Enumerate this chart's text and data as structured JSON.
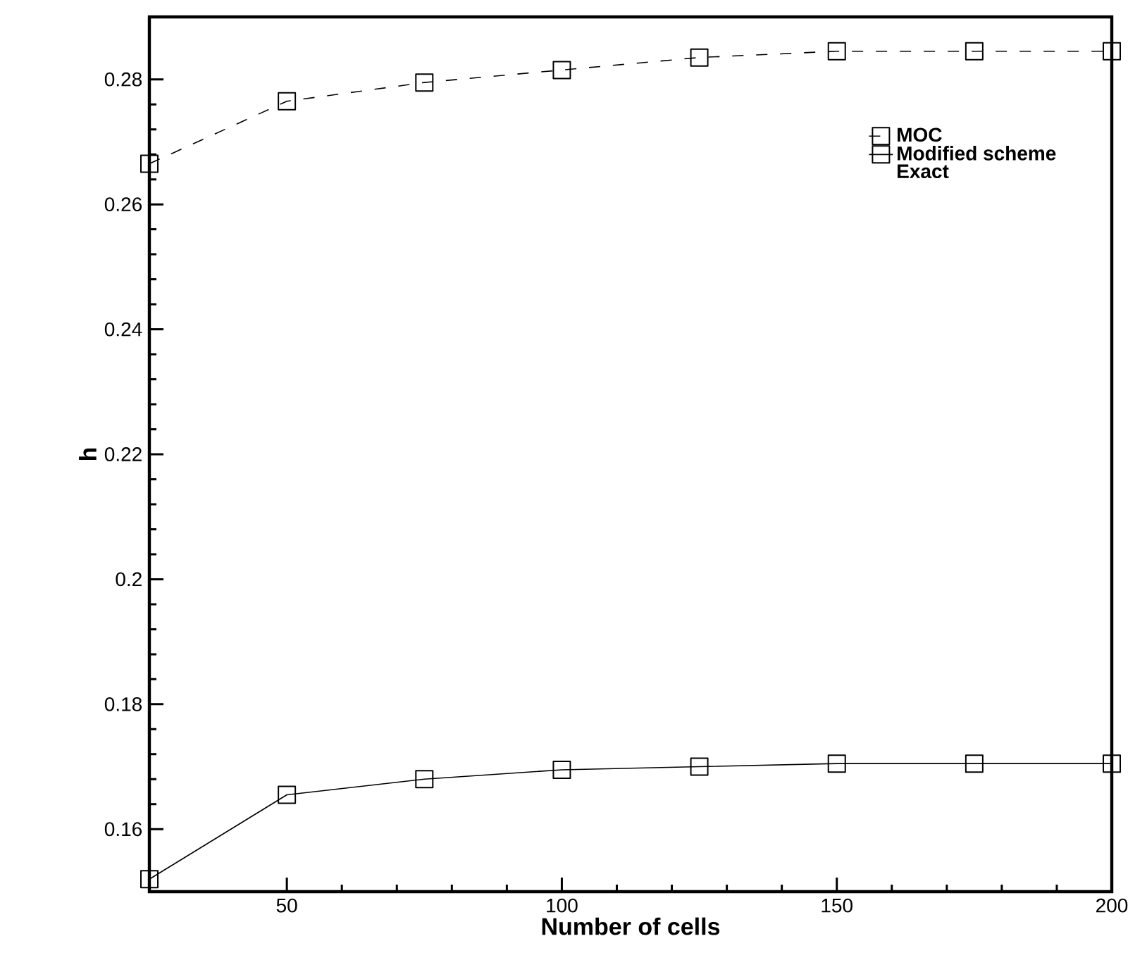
{
  "chart_data": {
    "type": "line",
    "xlabel": "Number of cells",
    "ylabel": "h",
    "x": [
      25,
      50,
      75,
      100,
      125,
      150,
      175,
      200
    ],
    "series": [
      {
        "name": "MOC",
        "color": "#000000",
        "line_style": "dashed",
        "values": [
          0.2665,
          0.2765,
          0.2795,
          0.2815,
          0.2835,
          0.2845,
          0.2845,
          0.2845
        ]
      },
      {
        "name": "Modified scheme",
        "color": "#000000",
        "line_style": "solid",
        "values": [
          0.152,
          0.1655,
          0.168,
          0.1695,
          0.17,
          0.1705,
          0.1705,
          0.1705
        ]
      }
    ],
    "annotations": [
      "Exact"
    ],
    "xlim": [
      25,
      200
    ],
    "ylim": [
      0.15,
      0.29
    ],
    "xticks": [
      50,
      100,
      150,
      200
    ],
    "yticks": [
      0.16,
      0.18,
      0.2,
      0.22,
      0.24,
      0.26,
      0.28
    ],
    "marker": "square",
    "legend": "top right",
    "grid": false
  }
}
